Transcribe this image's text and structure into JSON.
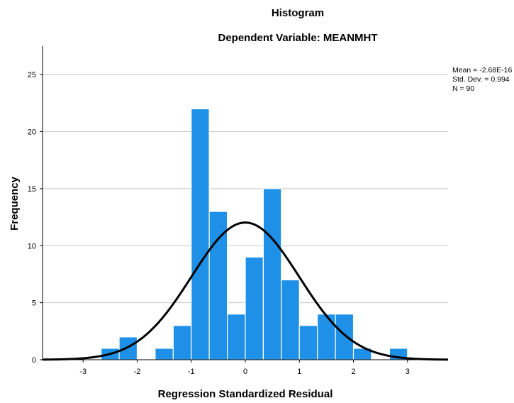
{
  "chart_data": {
    "type": "bar",
    "title": "Histogram",
    "subtitle": "Dependent Variable: MEANMHT",
    "xlabel": "Regression Standardized Residual",
    "ylabel": "Frequency",
    "xlim": [
      -3.75,
      3.75
    ],
    "ylim": [
      0,
      27.5
    ],
    "x_ticks": [
      -3,
      -2,
      -1,
      0,
      1,
      2,
      3
    ],
    "y_ticks": [
      0,
      5,
      10,
      15,
      20,
      25
    ],
    "grid": true,
    "bin_width": 0.333,
    "bins": [
      {
        "start": -2.667,
        "end": -2.333,
        "count": 1
      },
      {
        "start": -2.333,
        "end": -2.0,
        "count": 2
      },
      {
        "start": -2.0,
        "end": -1.667,
        "count": 0
      },
      {
        "start": -1.667,
        "end": -1.333,
        "count": 1
      },
      {
        "start": -1.333,
        "end": -1.0,
        "count": 3
      },
      {
        "start": -1.0,
        "end": -0.667,
        "count": 22
      },
      {
        "start": -0.667,
        "end": -0.333,
        "count": 13
      },
      {
        "start": -0.333,
        "end": 0.0,
        "count": 4
      },
      {
        "start": 0.0,
        "end": 0.333,
        "count": 9
      },
      {
        "start": 0.333,
        "end": 0.667,
        "count": 15
      },
      {
        "start": 0.667,
        "end": 1.0,
        "count": 7
      },
      {
        "start": 1.0,
        "end": 1.333,
        "count": 3
      },
      {
        "start": 1.333,
        "end": 1.667,
        "count": 4
      },
      {
        "start": 1.667,
        "end": 2.0,
        "count": 4
      },
      {
        "start": 2.0,
        "end": 2.333,
        "count": 1
      },
      {
        "start": 2.333,
        "end": 2.667,
        "count": 0
      },
      {
        "start": 2.667,
        "end": 3.0,
        "count": 1
      }
    ],
    "normal_curve": {
      "mean": -2.68e-16,
      "sd": 0.994,
      "n": 90
    },
    "stats_text": {
      "mean": "Mean = -2.68E-16",
      "sd": "Std. Dev. = 0.994",
      "n": "N = 90"
    },
    "colors": {
      "bar_fill": "#1E90E8",
      "bar_stroke": "#ffffff",
      "curve": "#000000",
      "grid": "#c8c8c8",
      "axis": "#000000"
    }
  }
}
